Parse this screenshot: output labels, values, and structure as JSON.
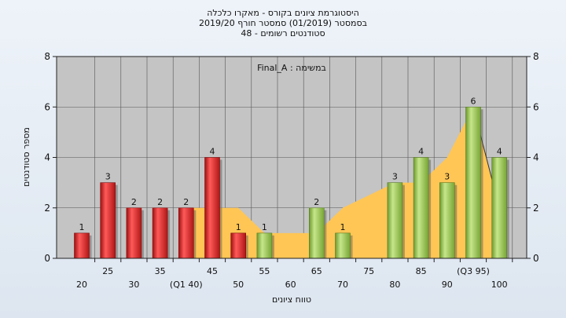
{
  "chart_data": {
    "type": "bar",
    "title": "היסטוגרמת ציונים בקורס - מאקרו כלכלה",
    "subtitle": "בסמסטר  (01/2019)  סמסטר חורף 2019/20",
    "subtitle2": "סטודנטים רשומים - 48",
    "annotation": "Final_A : במשימה",
    "xlabel": "טווח ציונים",
    "ylabel": "מספר סטודנטים",
    "ylim": [
      0,
      8
    ],
    "y_ticks": [
      "0",
      "2",
      "4",
      "6",
      "8"
    ],
    "grid": true,
    "categories": [
      "20",
      "25",
      "30",
      "35",
      "(Q1 40)",
      "45",
      "50",
      "55",
      "60",
      "65",
      "70",
      "75",
      "80",
      "85",
      "90",
      "(Q3 95)",
      "100"
    ],
    "values": [
      1,
      3,
      2,
      2,
      2,
      4,
      1,
      1,
      0,
      2,
      1,
      0,
      3,
      4,
      3,
      6,
      4
    ],
    "value_labels": [
      "1",
      "3",
      "2",
      "2",
      "2",
      "4",
      "1",
      "1",
      "",
      "2",
      "1",
      "",
      "3",
      "4",
      "3",
      "6",
      "4"
    ],
    "bar_groups": [
      "low",
      "low",
      "low",
      "low",
      "low",
      "low",
      "low",
      "high",
      "high",
      "high",
      "high",
      "high",
      "high",
      "high",
      "high",
      "high",
      "high"
    ],
    "area_start_index": 4,
    "area_values": [
      2,
      2,
      2,
      1,
      1,
      1,
      2,
      2.5,
      3,
      3,
      4,
      6,
      2
    ],
    "colors": {
      "low_bar": "#e8282a",
      "high_bar": "#9ccc55",
      "area": "#ffc655",
      "plot_bg": "#c4c4c4",
      "grid": "#555555"
    }
  }
}
